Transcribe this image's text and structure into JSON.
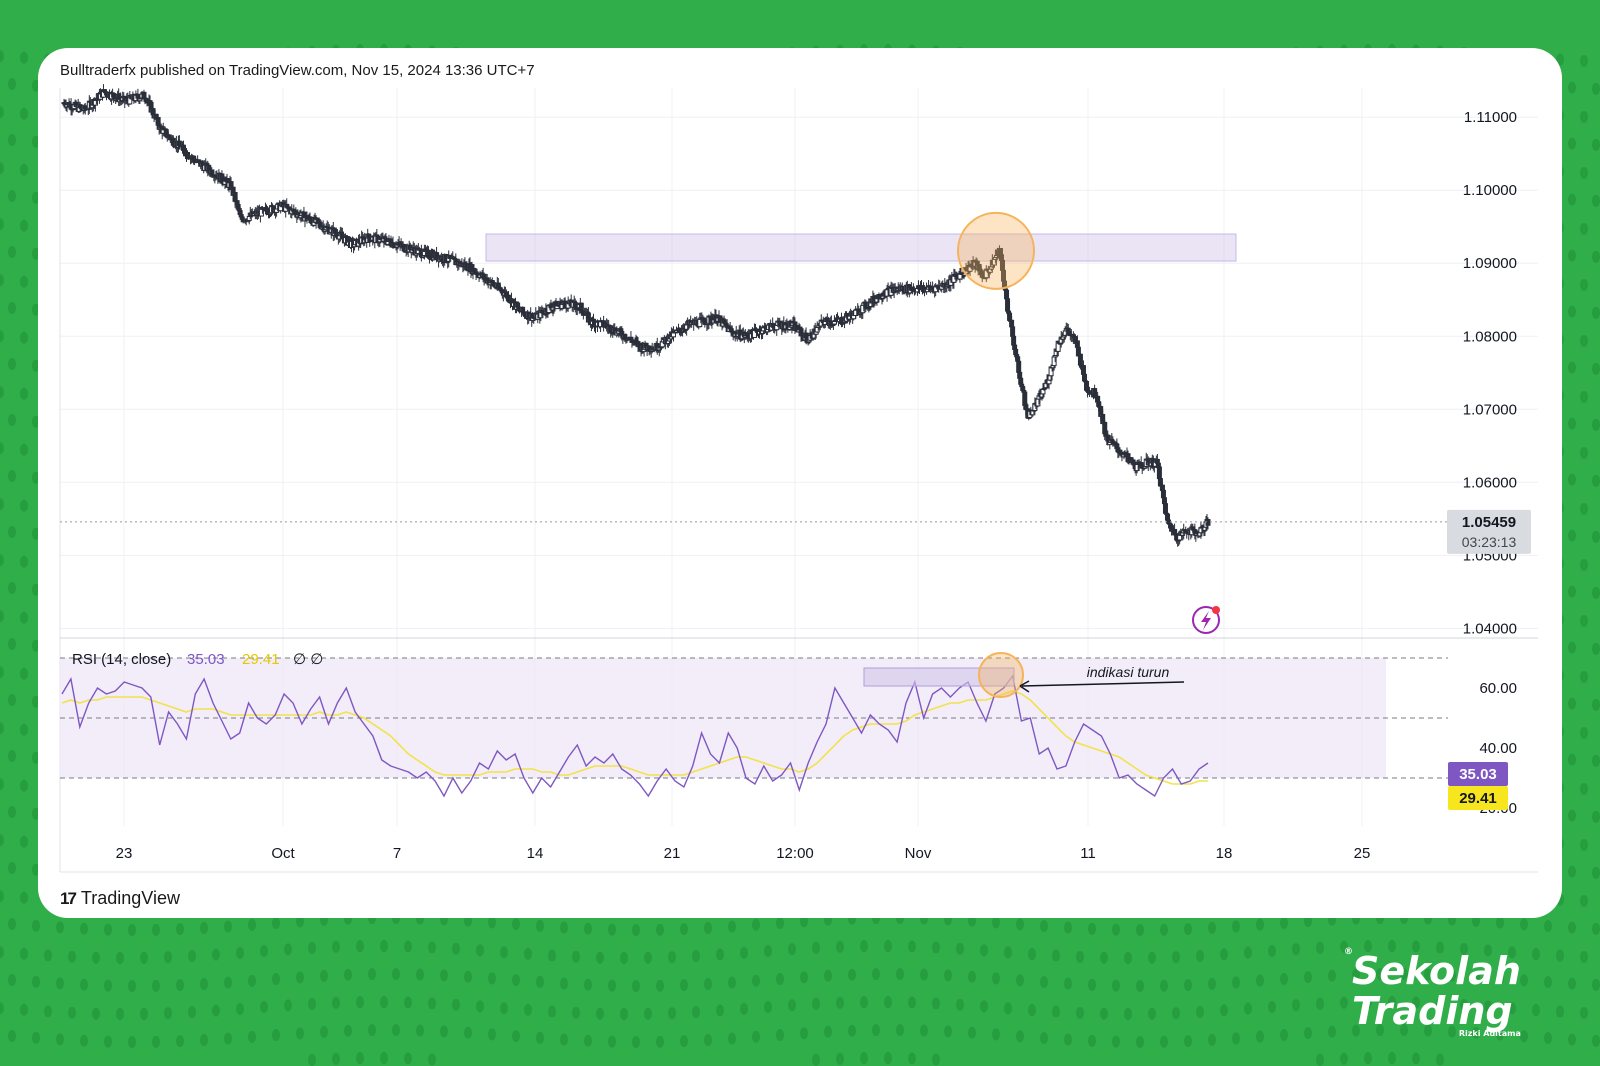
{
  "header": {
    "publish_text": "Bulltraderfx published on TradingView.com, Nov 15, 2024 13:36 UTC+7"
  },
  "footer": {
    "logo_mark": "17",
    "logo_text": "TradingView"
  },
  "brand": {
    "line1": "Sekolah",
    "line2": "Trading",
    "sub": "Rizki Aditama",
    "reg": "®"
  },
  "colors": {
    "background_green": "#2fae4a",
    "candle": "#2a2e39",
    "rsi_line": "#7e57c2",
    "rsi_ma": "#f2e24b",
    "resistance_zone": "#d1c4e9",
    "highlight_circle": "#f5b35a",
    "price_label_bg": "#d8dbe0",
    "rsi_label_bg": "#7e57c2",
    "ma_label_bg": "#f7e51e"
  },
  "chart_data": [
    {
      "type": "candlestick",
      "x_tick_labels": [
        "23",
        "Oct",
        "7",
        "14",
        "21",
        "12:00",
        "Nov",
        "11",
        "18",
        "25"
      ],
      "y_tick_labels": [
        "1.11000",
        "1.10000",
        "1.09000",
        "1.08000",
        "1.07000",
        "1.06000",
        "1.05000",
        "1.04000"
      ],
      "ylim": [
        1.0395,
        1.114
      ],
      "last_price_label": "1.05459",
      "countdown_label": "03:23:13",
      "resistance_zone": [
        1.0903,
        1.094
      ],
      "close_path": [
        [
          0,
          1.112
        ],
        [
          20,
          1.111
        ],
        [
          40,
          1.1135
        ],
        [
          60,
          1.1122
        ],
        [
          80,
          1.113
        ],
        [
          95,
          1.1085
        ],
        [
          110,
          1.1065
        ],
        [
          130,
          1.104
        ],
        [
          150,
          1.1022
        ],
        [
          165,
          1.1005
        ],
        [
          175,
          1.096
        ],
        [
          195,
          1.097
        ],
        [
          215,
          1.0978
        ],
        [
          235,
          1.0965
        ],
        [
          250,
          1.0955
        ],
        [
          270,
          1.094
        ],
        [
          285,
          1.0925
        ],
        [
          300,
          1.0935
        ],
        [
          320,
          1.093
        ],
        [
          340,
          1.092
        ],
        [
          360,
          1.0912
        ],
        [
          380,
          1.0905
        ],
        [
          400,
          1.0895
        ],
        [
          420,
          1.0875
        ],
        [
          435,
          1.086
        ],
        [
          450,
          1.0835
        ],
        [
          465,
          1.0825
        ],
        [
          480,
          1.084
        ],
        [
          495,
          1.0845
        ],
        [
          510,
          1.084
        ],
        [
          520,
          1.082
        ],
        [
          535,
          1.0815
        ],
        [
          555,
          1.08
        ],
        [
          570,
          1.0785
        ],
        [
          585,
          1.0785
        ],
        [
          600,
          1.08
        ],
        [
          615,
          1.0815
        ],
        [
          630,
          1.082
        ],
        [
          645,
          1.0825
        ],
        [
          660,
          1.0805
        ],
        [
          675,
          1.08
        ],
        [
          690,
          1.081
        ],
        [
          705,
          1.0815
        ],
        [
          720,
          1.0815
        ],
        [
          735,
          1.0795
        ],
        [
          750,
          1.082
        ],
        [
          765,
          1.082
        ],
        [
          780,
          1.083
        ],
        [
          795,
          1.0845
        ],
        [
          810,
          1.086
        ],
        [
          825,
          1.0865
        ],
        [
          840,
          1.0865
        ],
        [
          855,
          1.0865
        ],
        [
          870,
          1.087
        ],
        [
          880,
          1.088
        ],
        [
          890,
          1.089
        ],
        [
          900,
          1.09
        ],
        [
          908,
          1.0882
        ],
        [
          916,
          1.0895
        ],
        [
          924,
          1.092
        ],
        [
          932,
          1.084
        ],
        [
          942,
          1.076
        ],
        [
          952,
          1.069
        ],
        [
          962,
          1.071
        ],
        [
          972,
          1.074
        ],
        [
          982,
          1.079
        ],
        [
          990,
          1.081
        ],
        [
          1000,
          1.079
        ],
        [
          1010,
          1.073
        ],
        [
          1020,
          1.072
        ],
        [
          1030,
          1.066
        ],
        [
          1045,
          1.064
        ],
        [
          1060,
          1.062
        ],
        [
          1072,
          1.0628
        ],
        [
          1080,
          1.0625
        ],
        [
          1090,
          1.0545
        ],
        [
          1100,
          1.0525
        ],
        [
          1110,
          1.0535
        ],
        [
          1120,
          1.053
        ],
        [
          1130,
          1.0545
        ]
      ]
    },
    {
      "type": "line",
      "title": "RSI (14, close)",
      "values_label": [
        "35.03",
        "29.41"
      ],
      "extra_label": "∅ ∅",
      "y_tick_labels": [
        "60.00",
        "40.00",
        "20.00"
      ],
      "ylim": [
        14,
        76
      ],
      "levels": [
        70,
        50,
        30
      ],
      "annotation": "indikasi turun",
      "series": [
        {
          "values": [
            58,
            63,
            47,
            55,
            60,
            58,
            59,
            62,
            61,
            60,
            57,
            41,
            52,
            48,
            43,
            58,
            63,
            55,
            49,
            43,
            45,
            55,
            50,
            48,
            51,
            58,
            55,
            48,
            53,
            57,
            48,
            55,
            60,
            52,
            48,
            44,
            36,
            34,
            33,
            32,
            30,
            32,
            29,
            24,
            30,
            25,
            29,
            35,
            33,
            39,
            36,
            38,
            30,
            25,
            30,
            27,
            32,
            37,
            41,
            34,
            37,
            35,
            38,
            33,
            31,
            28,
            24,
            29,
            33,
            29,
            27,
            34,
            45,
            38,
            35,
            45,
            40,
            30,
            28,
            34,
            29,
            31,
            35,
            26,
            35,
            42,
            48,
            60,
            55,
            50,
            45,
            51,
            48,
            46,
            42,
            55,
            62,
            50,
            58,
            60,
            57,
            60,
            62,
            55,
            49,
            58,
            60,
            64,
            49,
            50,
            38,
            40,
            33,
            34,
            42,
            48,
            46,
            44,
            38,
            30,
            31,
            28,
            26,
            24,
            30,
            33,
            28,
            29,
            33,
            35
          ]
        },
        {
          "values": [
            55,
            56,
            55,
            56,
            56,
            57,
            57,
            57,
            57,
            57,
            56,
            55,
            54,
            53,
            52,
            53,
            53,
            53,
            52,
            51,
            51,
            51,
            51,
            51,
            51,
            51,
            51,
            51,
            51,
            52,
            51,
            51,
            52,
            51,
            50,
            48,
            46,
            44,
            41,
            38,
            36,
            34,
            32,
            31,
            31,
            31,
            31,
            31,
            32,
            32,
            32,
            33,
            33,
            33,
            32,
            32,
            31,
            31,
            32,
            33,
            34,
            34,
            34,
            34,
            33,
            32,
            31,
            31,
            31,
            31,
            31,
            32,
            33,
            34,
            35,
            36,
            37,
            37,
            36,
            35,
            34,
            33,
            33,
            32,
            33,
            35,
            38,
            41,
            44,
            46,
            47,
            48,
            48,
            48,
            48,
            49,
            51,
            52,
            53,
            54,
            55,
            55,
            56,
            56,
            56,
            57,
            58,
            59,
            58,
            56,
            53,
            50,
            47,
            44,
            42,
            41,
            40,
            39,
            38,
            37,
            35,
            33,
            31,
            30,
            29,
            28,
            28,
            28,
            29,
            29
          ]
        }
      ]
    }
  ]
}
